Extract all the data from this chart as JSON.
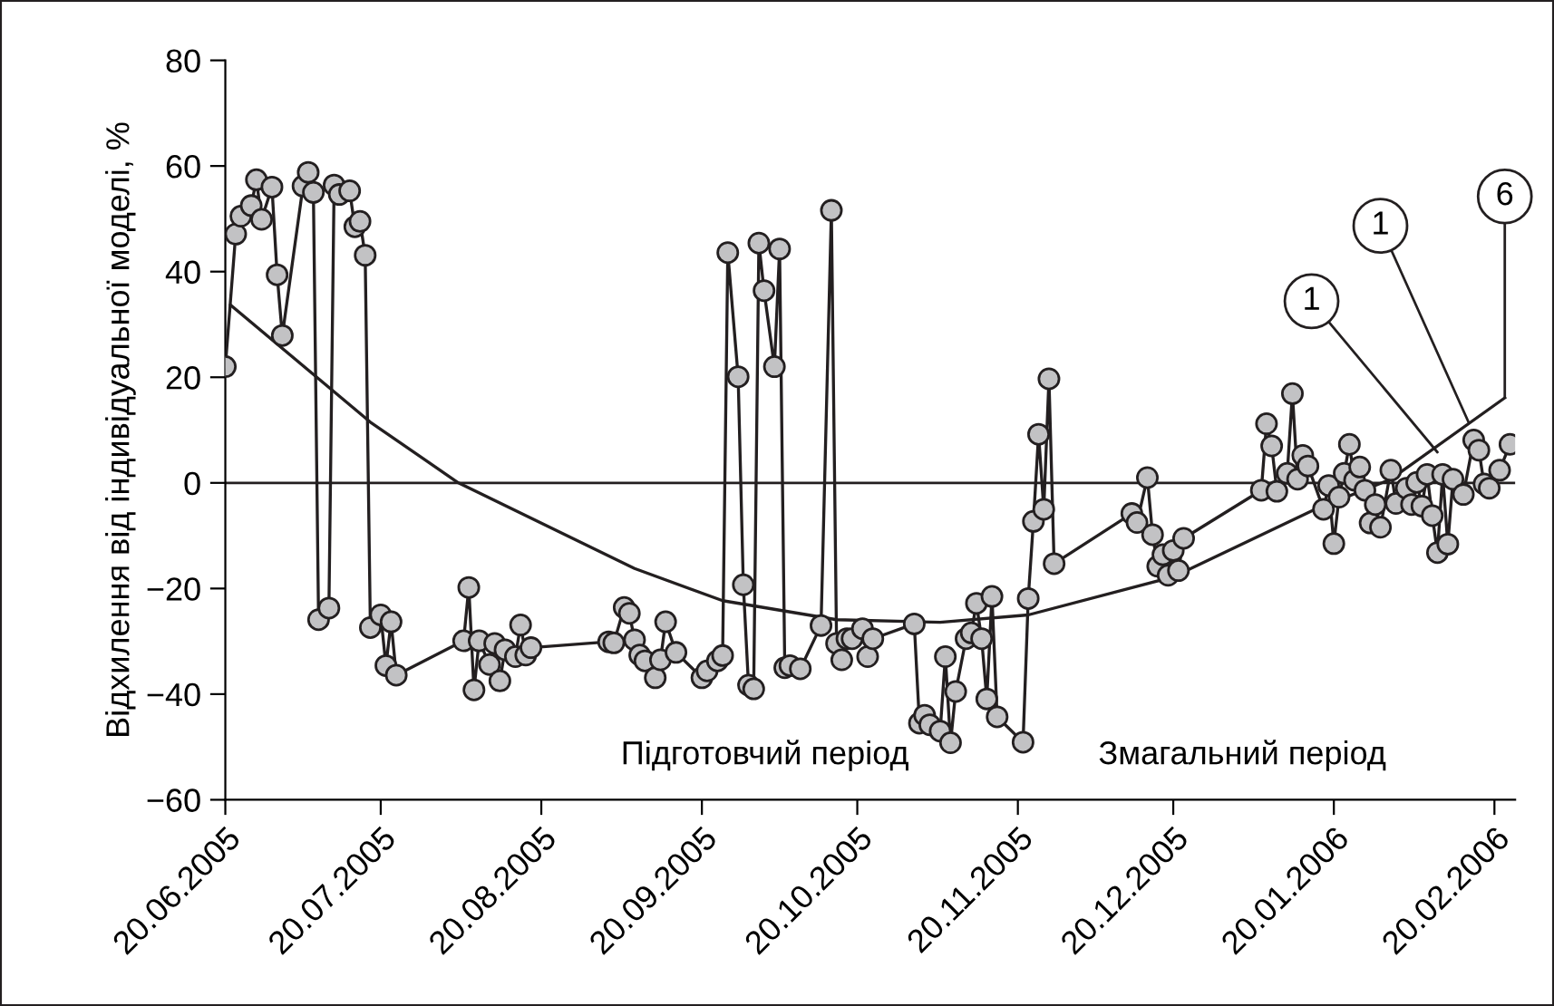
{
  "chart_data": {
    "type": "line",
    "ylabel": "Відхилення від індивідуальної моделі, %",
    "marker": "circle",
    "grid": false,
    "legend": false,
    "xlim": [
      "2005-06-20",
      "2006-02-24"
    ],
    "xticks": [
      {
        "value": "2005-06-20",
        "label": "20.06.2005"
      },
      {
        "value": "2005-07-20",
        "label": "20.07.2005"
      },
      {
        "value": "2005-08-20",
        "label": "20.08.2005"
      },
      {
        "value": "2005-09-20",
        "label": "20.09.2005"
      },
      {
        "value": "2005-10-20",
        "label": "20.10.2005"
      },
      {
        "value": "2005-11-20",
        "label": "20.11.2005"
      },
      {
        "value": "2005-12-20",
        "label": "20.12.2005"
      },
      {
        "value": "2006-01-20",
        "label": "20.01.2006"
      },
      {
        "value": "2006-02-20",
        "label": "20.02.2006"
      }
    ],
    "ylim": [
      -60,
      80
    ],
    "yticks": [
      -60,
      -40,
      -20,
      0,
      20,
      40,
      60,
      80
    ],
    "ref_lines": [
      {
        "axis": "y",
        "value": 0,
        "color": "#231f20"
      }
    ],
    "series": [
      {
        "color": "#c2c2c4",
        "x": [
          "2005-06-20",
          "2005-06-22",
          "2005-06-23",
          "2005-06-25",
          "2005-06-26",
          "2005-06-27",
          "2005-06-29",
          "2005-06-30",
          "2005-07-01",
          "2005-07-05",
          "2005-07-06",
          "2005-07-07",
          "2005-07-08",
          "2005-07-10",
          "2005-07-11",
          "2005-07-12",
          "2005-07-14",
          "2005-07-15",
          "2005-07-16",
          "2005-07-17",
          "2005-07-18",
          "2005-07-20",
          "2005-07-21",
          "2005-07-22",
          "2005-07-23",
          "2005-08-05",
          "2005-08-06",
          "2005-08-07",
          "2005-08-08",
          "2005-08-10",
          "2005-08-11",
          "2005-08-12",
          "2005-08-13",
          "2005-08-15",
          "2005-08-16",
          "2005-08-17",
          "2005-08-18",
          "2005-09-02",
          "2005-09-03",
          "2005-09-05",
          "2005-09-06",
          "2005-09-07",
          "2005-09-08",
          "2005-09-09",
          "2005-09-11",
          "2005-09-12",
          "2005-09-13",
          "2005-09-15",
          "2005-09-20",
          "2005-09-21",
          "2005-09-23",
          "2005-09-24",
          "2005-09-25",
          "2005-09-27",
          "2005-09-28",
          "2005-09-29",
          "2005-09-30",
          "2005-10-01",
          "2005-10-02",
          "2005-10-04",
          "2005-10-05",
          "2005-10-06",
          "2005-10-07",
          "2005-10-09",
          "2005-10-13",
          "2005-10-15",
          "2005-10-16",
          "2005-10-17",
          "2005-10-18",
          "2005-10-19",
          "2005-10-21",
          "2005-10-22",
          "2005-10-23",
          "2005-10-31",
          "2005-11-01",
          "2005-11-02",
          "2005-11-03",
          "2005-11-05",
          "2005-11-06",
          "2005-11-07",
          "2005-11-08",
          "2005-11-10",
          "2005-11-11",
          "2005-11-12",
          "2005-11-13",
          "2005-11-14",
          "2005-11-15",
          "2005-11-16",
          "2005-11-21",
          "2005-11-22",
          "2005-11-23",
          "2005-11-24",
          "2005-11-25",
          "2005-11-26",
          "2005-11-27",
          "2005-12-12",
          "2005-12-13",
          "2005-12-15",
          "2005-12-16",
          "2005-12-17",
          "2005-12-18",
          "2005-12-19",
          "2005-12-20",
          "2005-12-21",
          "2005-12-22",
          "2006-01-06",
          "2006-01-07",
          "2006-01-08",
          "2006-01-09",
          "2006-01-11",
          "2006-01-12",
          "2006-01-13",
          "2006-01-14",
          "2006-01-15",
          "2006-01-18",
          "2006-01-19",
          "2006-01-20",
          "2006-01-21",
          "2006-01-22",
          "2006-01-23",
          "2006-01-24",
          "2006-01-25",
          "2006-01-26",
          "2006-01-27",
          "2006-01-28",
          "2006-01-29",
          "2006-01-31",
          "2006-02-01",
          "2006-02-03",
          "2006-02-04",
          "2006-02-05",
          "2006-02-06",
          "2006-02-07",
          "2006-02-08",
          "2006-02-09",
          "2006-02-10",
          "2006-02-11",
          "2006-02-12",
          "2006-02-14",
          "2006-02-16",
          "2006-02-17",
          "2006-02-18",
          "2006-02-19",
          "2006-02-21",
          "2006-02-23"
        ],
        "values": [
          22.0,
          47.1,
          50.5,
          52.5,
          57.4,
          49.9,
          56.0,
          39.4,
          27.9,
          56.2,
          58.8,
          55.0,
          -25.9,
          -23.7,
          56.4,
          54.6,
          55.3,
          48.5,
          49.5,
          43.1,
          -27.4,
          -25.0,
          -34.6,
          -26.3,
          -36.4,
          -29.9,
          -19.8,
          -39.2,
          -29.9,
          -34.4,
          -30.4,
          -37.5,
          -31.6,
          -32.9,
          -26.9,
          -32.6,
          -31.2,
          -30.1,
          -30.3,
          -23.6,
          -24.7,
          -29.7,
          -32.6,
          -33.7,
          -36.9,
          -33.5,
          -26.3,
          -32.1,
          -36.9,
          -35.6,
          -33.7,
          -32.7,
          43.6,
          20.1,
          -19.3,
          -38.3,
          -39.0,
          45.4,
          36.4,
          22.0,
          44.3,
          -35.0,
          -34.6,
          -35.2,
          -27.0,
          51.6,
          -30.4,
          -33.5,
          -29.5,
          -29.5,
          -27.6,
          -32.9,
          -29.5,
          -26.7,
          -45.5,
          -44.0,
          -45.8,
          -47.0,
          -32.9,
          -49.2,
          -39.5,
          -29.5,
          -28.4,
          -22.8,
          -29.5,
          -40.9,
          -21.5,
          -44.3,
          -49.1,
          -21.9,
          -7.3,
          9.2,
          -5.0,
          19.7,
          -15.3,
          -5.8,
          -7.5,
          1.0,
          -9.8,
          -15.8,
          -13.6,
          -17.5,
          -12.8,
          -16.6,
          -10.5,
          -1.4,
          11.2,
          7.0,
          -1.6,
          1.8,
          16.9,
          0.7,
          5.2,
          3.2,
          -5.0,
          -0.5,
          -11.5,
          -2.7,
          1.8,
          7.3,
          0.5,
          3.0,
          -1.4,
          -7.6,
          -4.1,
          -8.4,
          2.4,
          -3.9,
          -1.0,
          -4.1,
          0.1,
          -4.4,
          1.6,
          -6.2,
          -13.2,
          1.6,
          -11.6,
          0.7,
          -2.2,
          8.1,
          6.2,
          -0.2,
          -1.0,
          2.4,
          7.3
        ]
      },
      {
        "type": "line",
        "marker": "none",
        "color": "#231f20",
        "x": [
          "2005-06-21",
          "2005-07-18",
          "2005-08-04",
          "2005-09-07",
          "2005-09-24",
          "2005-10-16",
          "2005-11-05",
          "2005-11-22",
          "2005-12-20",
          "2006-01-16",
          "2006-01-31",
          "2006-02-22"
        ],
        "values": [
          33.7,
          11.5,
          0.0,
          -16.2,
          -22.3,
          -25.9,
          -26.4,
          -25.0,
          -17.8,
          -5.2,
          0.7,
          16.1
        ]
      }
    ],
    "annotations": [
      "Підготовчий період",
      "Змагальний період",
      {
        "text": "1",
        "x": "2006-02-09",
        "y": 5.8
      },
      {
        "text": "1",
        "x": "2006-02-15",
        "y": 11.5
      },
      {
        "text": "6",
        "x": "2006-02-22",
        "y": 16.1
      }
    ]
  }
}
